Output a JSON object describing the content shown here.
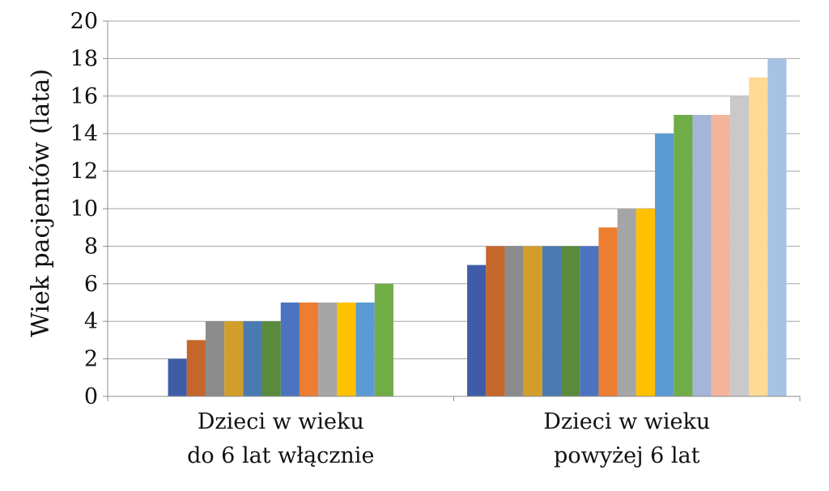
{
  "chart_data": {
    "type": "bar",
    "title": "",
    "xlabel": "",
    "ylabel": "Wiek pacjentów (lata)",
    "ylim": [
      0,
      20
    ],
    "yticks": [
      0,
      2,
      4,
      6,
      8,
      10,
      12,
      14,
      16,
      18,
      20
    ],
    "grid": true,
    "legend": "none",
    "groups": [
      {
        "label_lines": [
          "Dzieci w wieku",
          "do 6 lat włącznie"
        ],
        "values": [
          2,
          3,
          4,
          4,
          4,
          4,
          5,
          5,
          5,
          5,
          5,
          6
        ]
      },
      {
        "label_lines": [
          "Dzieci w wieku",
          "powyżej 6 lat"
        ],
        "values": [
          7,
          8,
          8,
          8,
          8,
          8,
          8,
          9,
          10,
          10,
          14,
          15,
          15,
          15,
          16,
          17,
          18
        ]
      }
    ]
  },
  "colors": {
    "group_1": [
      "#3F5DA6",
      "#C5662B",
      "#8C8C8C",
      "#D29E2A",
      "#4A7BB0",
      "#5A8A3C",
      "#4C73BF",
      "#EC7D31",
      "#A5A5A5",
      "#FFC000",
      "#5B9BD5",
      "#70AD47"
    ],
    "group_2": [
      "#3F5DA6",
      "#C5662B",
      "#8C8C8C",
      "#D29E2A",
      "#4A7BB0",
      "#5A8A3C",
      "#4C73BF",
      "#EC7D31",
      "#A5A5A5",
      "#FFC000",
      "#5B9BD5",
      "#70AD47",
      "#A5B4D9",
      "#F4B49C",
      "#C9C9C9",
      "#FFD995",
      "#A7C2E2"
    ],
    "grid": "#a6a6a6",
    "axis": "#8c8c8c"
  }
}
